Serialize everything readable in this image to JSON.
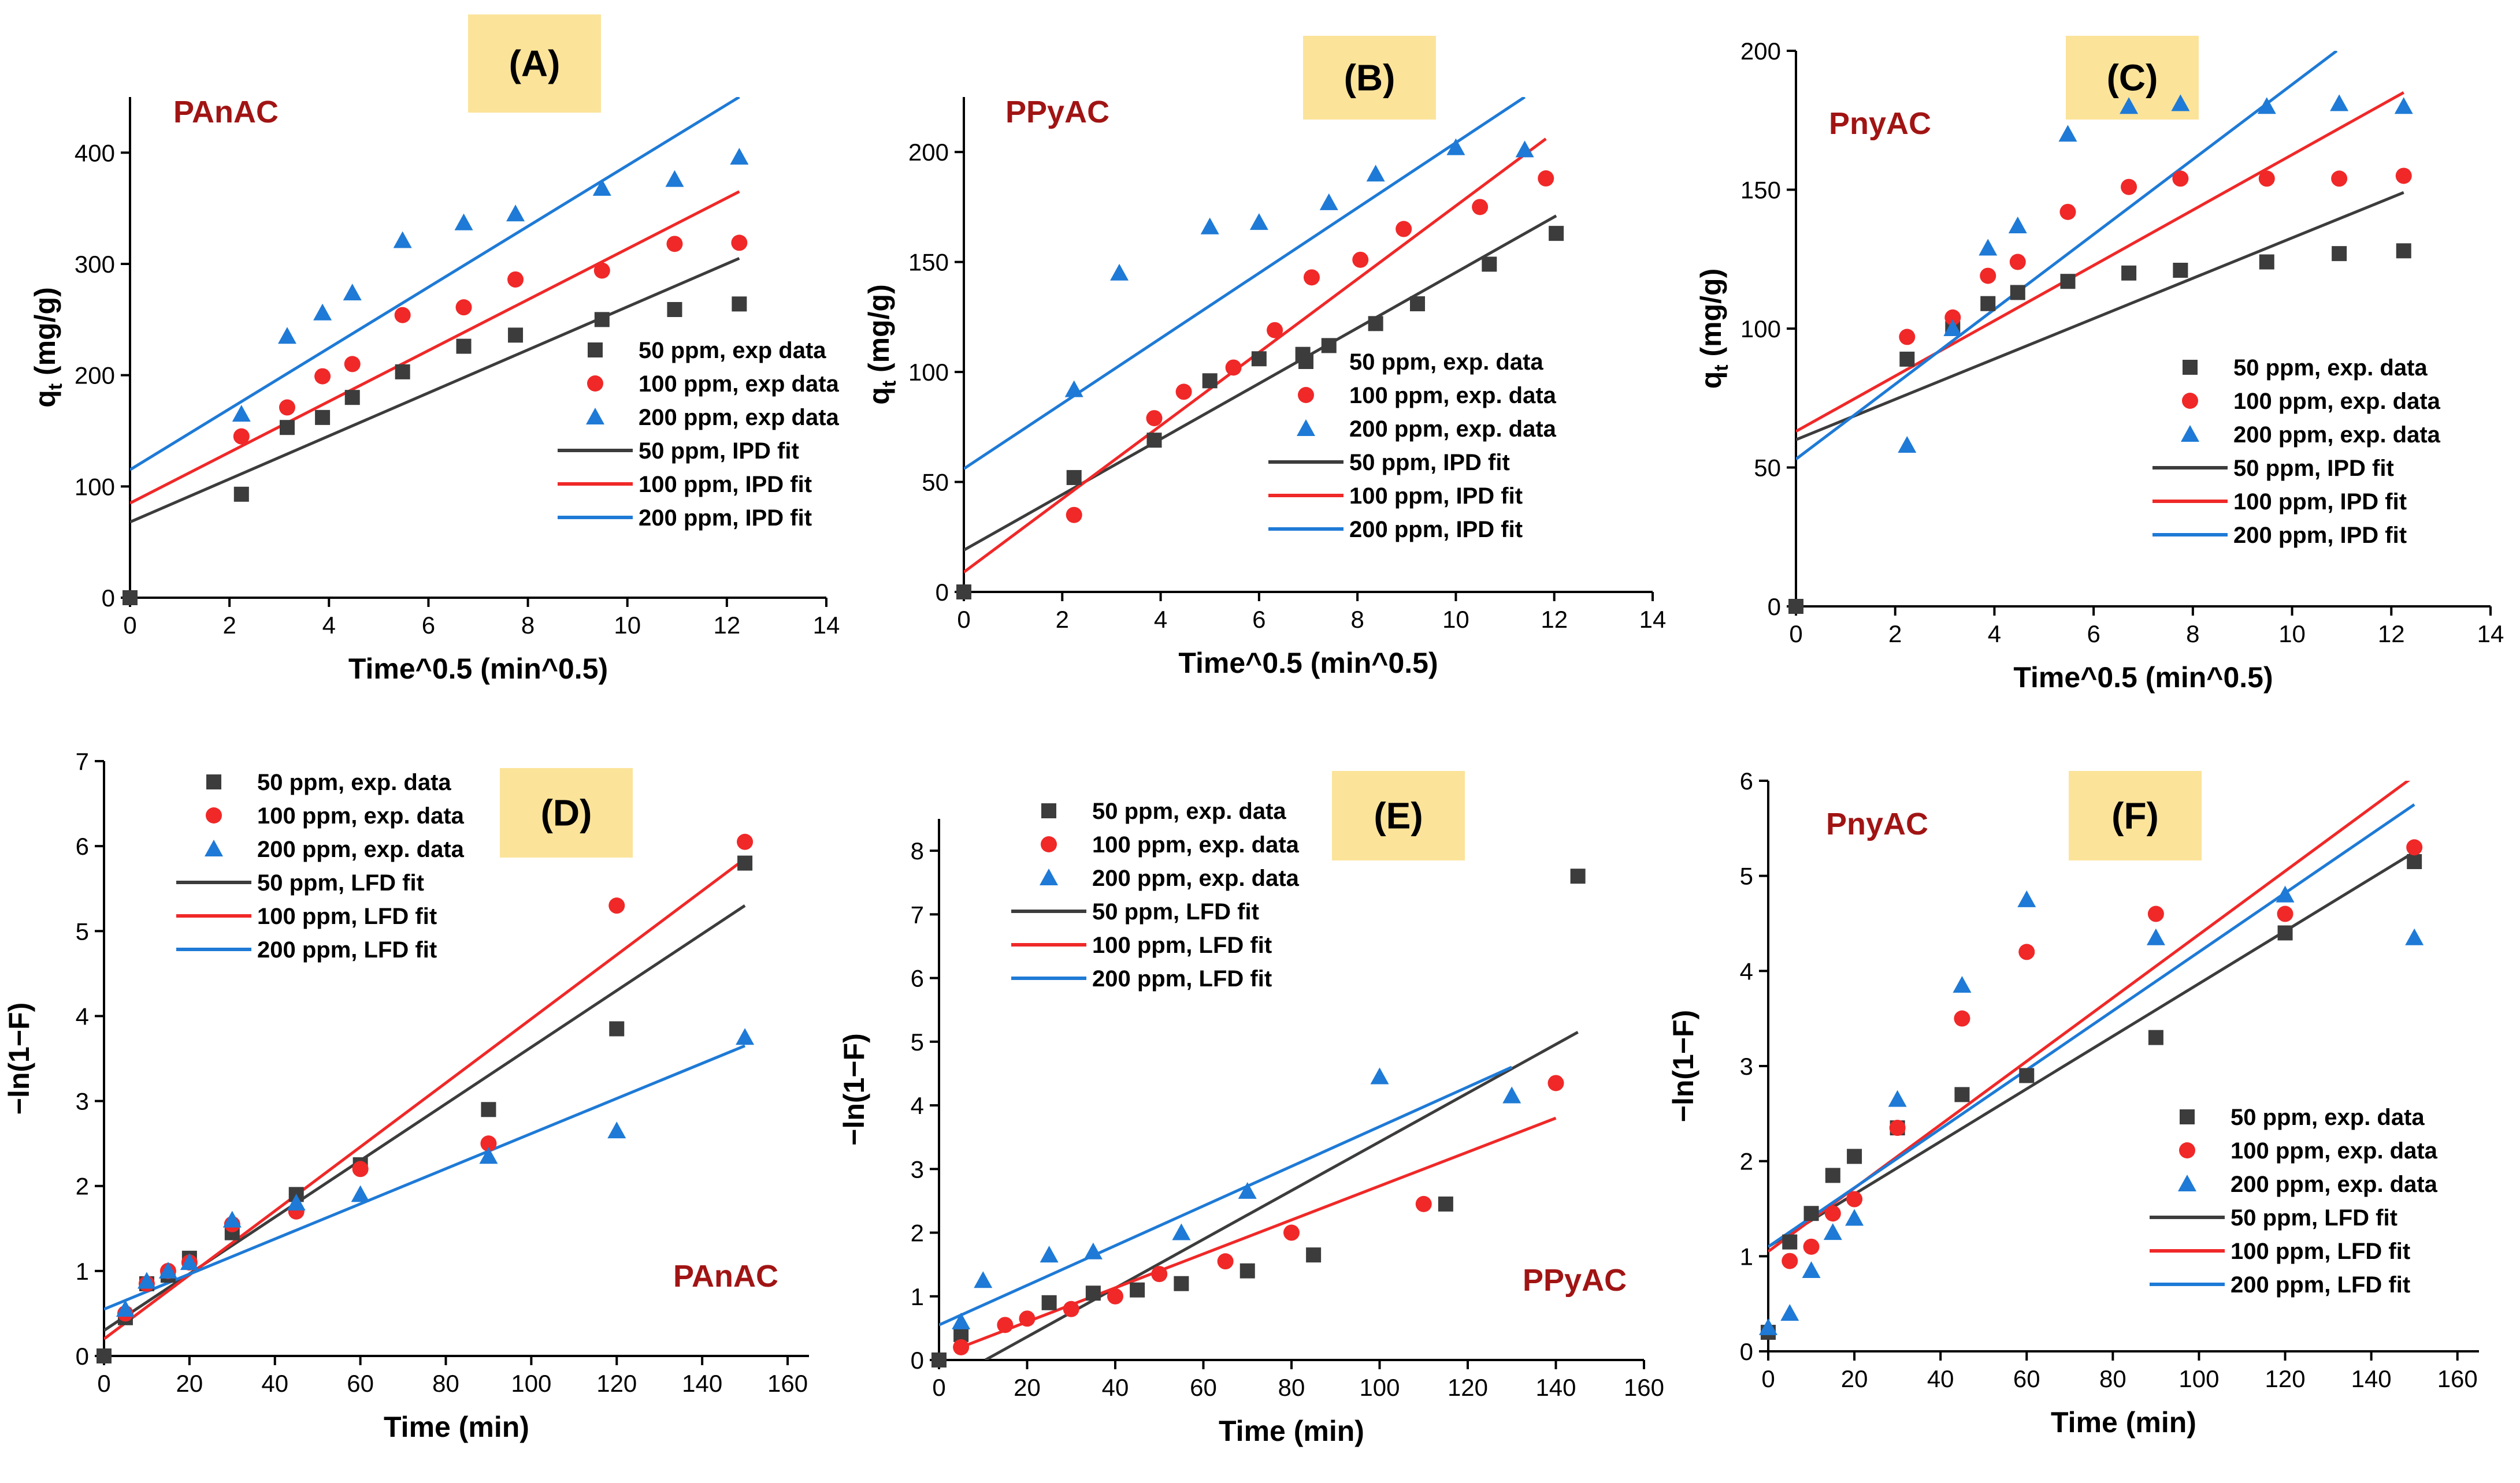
{
  "figure": {
    "colors": {
      "s50": "#3c3c3c",
      "s100": "#f02828",
      "s200": "#1e7ad6",
      "label_box": "#fbe39a",
      "annotation": "#a11414",
      "axis": "#000000"
    }
  },
  "chart_data": [
    {
      "id": "A",
      "type": "scatter",
      "panel_label": "(A)",
      "annotation": "PAnAC",
      "xlabel": "Time^0.5 (min^0.5)",
      "ylabel": "q_t (mg/g)",
      "xlim": [
        0,
        14
      ],
      "ylim": [
        0,
        450
      ],
      "xticks": [
        0,
        2,
        4,
        6,
        8,
        10,
        12,
        14
      ],
      "xtick_labels": [
        "0",
        "2",
        "4",
        "6",
        "8",
        "10",
        "12",
        "14"
      ],
      "yticks": [
        0,
        100,
        200,
        300,
        400
      ],
      "ytick_labels": [
        "0",
        "100",
        "200",
        "300",
        "400"
      ],
      "legend_position": "lower-right",
      "series": [
        {
          "name": "50 ppm, exp data",
          "kind": "points",
          "marker": "square",
          "color_key": "s50",
          "x": [
            0,
            2.24,
            3.16,
            3.87,
            4.47,
            5.48,
            6.71,
            7.75,
            9.49,
            10.95,
            12.25
          ],
          "y": [
            0,
            93,
            153,
            162,
            180,
            203,
            226,
            236,
            250,
            259,
            264
          ]
        },
        {
          "name": "100 ppm, exp data",
          "kind": "points",
          "marker": "circle",
          "color_key": "s100",
          "x": [
            2.24,
            3.16,
            3.87,
            4.47,
            5.48,
            6.71,
            7.75,
            9.49,
            10.95,
            12.25
          ],
          "y": [
            145,
            171,
            199,
            210,
            254,
            261,
            286,
            294,
            318,
            319
          ]
        },
        {
          "name": "200 ppm, exp data",
          "kind": "points",
          "marker": "triangle",
          "color_key": "s200",
          "x": [
            2.24,
            3.16,
            3.87,
            4.47,
            5.48,
            6.71,
            7.75,
            9.49,
            10.95,
            12.25
          ],
          "y": [
            165,
            235,
            256,
            274,
            321,
            337,
            345,
            368,
            376,
            396
          ]
        },
        {
          "name": "50 ppm, IPD fit",
          "kind": "line",
          "color_key": "s50",
          "x": [
            0,
            12.25
          ],
          "y": [
            68,
            305
          ]
        },
        {
          "name": "100 ppm, IPD fit",
          "kind": "line",
          "color_key": "s100",
          "x": [
            0,
            12.25
          ],
          "y": [
            85,
            365
          ]
        },
        {
          "name": "200 ppm, IPD fit",
          "kind": "line",
          "color_key": "s200",
          "x": [
            0,
            12.25
          ],
          "y": [
            115,
            450
          ]
        }
      ]
    },
    {
      "id": "B",
      "type": "scatter",
      "panel_label": "(B)",
      "annotation": "PPyAC",
      "xlabel": "Time^0.5 (min^0.5)",
      "ylabel": "q_t (mg/g)",
      "xlim": [
        0,
        14
      ],
      "ylim": [
        0,
        225
      ],
      "xticks": [
        0,
        2,
        4,
        6,
        8,
        10,
        12,
        14
      ],
      "xtick_labels": [
        "0",
        "2",
        "4",
        "6",
        "8",
        "10",
        "12",
        "14"
      ],
      "yticks": [
        0,
        50,
        100,
        150,
        200
      ],
      "ytick_labels": [
        "0",
        "50",
        "100",
        "150",
        "200"
      ],
      "legend_position": "lower-right",
      "series": [
        {
          "name": "50 ppm, exp. data",
          "kind": "points",
          "marker": "square",
          "color_key": "s50",
          "x": [
            0,
            2.24,
            3.87,
            5.0,
            6.0,
            6.89,
            7.42,
            8.37,
            9.22,
            10.68,
            12.04
          ],
          "y": [
            0,
            52,
            69,
            96,
            106,
            108,
            112,
            122,
            131,
            149,
            163
          ]
        },
        {
          "name": "100 ppm, exp. data",
          "kind": "points",
          "marker": "circle",
          "color_key": "s100",
          "x": [
            2.24,
            3.87,
            4.47,
            5.48,
            6.32,
            7.07,
            8.06,
            8.94,
            10.49,
            11.83
          ],
          "y": [
            35,
            79,
            91,
            102,
            119,
            143,
            151,
            165,
            175,
            188
          ]
        },
        {
          "name": "200 ppm, exp. data",
          "kind": "points",
          "marker": "triangle",
          "color_key": "s200",
          "x": [
            2.24,
            3.16,
            5.0,
            6.0,
            7.42,
            8.37,
            10.0,
            11.4
          ],
          "y": [
            92,
            145,
            166,
            168,
            177,
            190,
            202,
            201
          ]
        },
        {
          "name": "50 ppm, IPD fit",
          "kind": "line",
          "color_key": "s50",
          "x": [
            0,
            12.04
          ],
          "y": [
            19,
            171
          ]
        },
        {
          "name": "100 ppm, IPD fit",
          "kind": "line",
          "color_key": "s100",
          "x": [
            0,
            11.83
          ],
          "y": [
            9,
            206
          ]
        },
        {
          "name": "200 ppm, IPD fit",
          "kind": "line",
          "color_key": "s200",
          "x": [
            0,
            11.4
          ],
          "y": [
            56,
            225
          ]
        }
      ]
    },
    {
      "id": "C",
      "type": "scatter",
      "panel_label": "(C)",
      "annotation": "PnyAC",
      "xlabel": "Time^0.5 (min^0.5)",
      "ylabel": "q_t (mg/g)",
      "xlim": [
        0,
        14
      ],
      "ylim": [
        0,
        200
      ],
      "xticks": [
        0,
        2,
        4,
        6,
        8,
        10,
        12,
        14
      ],
      "xtick_labels": [
        "0",
        "2",
        "4",
        "6",
        "8",
        "10",
        "12",
        "14"
      ],
      "yticks": [
        0,
        50,
        100,
        150,
        200
      ],
      "ytick_labels": [
        "0",
        "50",
        "100",
        "150",
        "200"
      ],
      "legend_position": "lower-right",
      "series": [
        {
          "name": "50 ppm, exp. data",
          "kind": "points",
          "marker": "square",
          "color_key": "s50",
          "x": [
            0,
            2.24,
            3.16,
            3.87,
            4.47,
            5.48,
            6.71,
            7.75,
            9.49,
            10.95,
            12.25
          ],
          "y": [
            0,
            89,
            100,
            109,
            113,
            117,
            120,
            121,
            124,
            127,
            128
          ]
        },
        {
          "name": "100 ppm, exp. data",
          "kind": "points",
          "marker": "circle",
          "color_key": "s100",
          "x": [
            2.24,
            3.16,
            3.87,
            4.47,
            5.48,
            6.71,
            7.75,
            9.49,
            10.95,
            12.25
          ],
          "y": [
            97,
            104,
            119,
            124,
            142,
            151,
            154,
            154,
            154,
            155
          ]
        },
        {
          "name": "200 ppm, exp. data",
          "kind": "points",
          "marker": "triangle",
          "color_key": "s200",
          "x": [
            2.24,
            3.16,
            3.87,
            4.47,
            5.48,
            6.71,
            7.75,
            9.49,
            10.95,
            12.25
          ],
          "y": [
            58,
            100,
            129,
            137,
            170,
            180,
            181,
            180,
            181,
            180
          ]
        },
        {
          "name": "50 ppm, IPD fit",
          "kind": "line",
          "color_key": "s50",
          "x": [
            0,
            12.25
          ],
          "y": [
            60,
            149
          ]
        },
        {
          "name": "100 ppm, IPD fit",
          "kind": "line",
          "color_key": "s100",
          "x": [
            0,
            12.25
          ],
          "y": [
            63,
            185
          ]
        },
        {
          "name": "200 ppm, IPD fit",
          "kind": "line",
          "color_key": "s200",
          "x": [
            0,
            10.9
          ],
          "y": [
            53,
            200
          ]
        }
      ]
    },
    {
      "id": "D",
      "type": "scatter",
      "panel_label": "(D)",
      "annotation": "PAnAC",
      "xlabel": "Time (min)",
      "ylabel": "−ln(1−F)",
      "xlim": [
        0,
        165
      ],
      "ylim": [
        0,
        7
      ],
      "xticks": [
        0,
        20,
        40,
        60,
        80,
        100,
        120,
        140,
        160
      ],
      "xtick_labels": [
        "0",
        "20",
        "40",
        "60",
        "80",
        "100",
        "120",
        "140",
        "160"
      ],
      "yticks": [
        0,
        1,
        2,
        3,
        4,
        5,
        6,
        7
      ],
      "ytick_labels": [
        "0",
        "1",
        "2",
        "3",
        "4",
        "5",
        "6",
        "7"
      ],
      "legend_position": "top-left",
      "series": [
        {
          "name": "50 ppm, exp. data",
          "kind": "points",
          "marker": "square",
          "color_key": "s50",
          "x": [
            0,
            5,
            10,
            15,
            20,
            30,
            45,
            60,
            90,
            120,
            150
          ],
          "y": [
            0,
            0.45,
            0.85,
            0.95,
            1.15,
            1.45,
            1.9,
            2.25,
            2.9,
            3.85,
            5.8
          ]
        },
        {
          "name": "100 ppm, exp. data",
          "kind": "points",
          "marker": "circle",
          "color_key": "s100",
          "x": [
            5,
            10,
            15,
            20,
            30,
            45,
            60,
            90,
            120,
            150
          ],
          "y": [
            0.5,
            0.85,
            1.0,
            1.1,
            1.55,
            1.7,
            2.2,
            2.5,
            5.3,
            6.05
          ]
        },
        {
          "name": "200 ppm, exp. data",
          "kind": "points",
          "marker": "triangle",
          "color_key": "s200",
          "x": [
            5,
            10,
            15,
            20,
            30,
            45,
            60,
            90,
            120,
            150
          ],
          "y": [
            0.55,
            0.88,
            1.0,
            1.1,
            1.6,
            1.8,
            1.9,
            2.35,
            2.65,
            3.75
          ]
        },
        {
          "name": "50 ppm, LFD fit",
          "kind": "line",
          "color_key": "s50",
          "x": [
            0,
            150
          ],
          "y": [
            0.3,
            5.3
          ]
        },
        {
          "name": "100 ppm, LFD fit",
          "kind": "line",
          "color_key": "s100",
          "x": [
            0,
            150
          ],
          "y": [
            0.2,
            5.85
          ]
        },
        {
          "name": "200 ppm, LFD fit",
          "kind": "line",
          "color_key": "s200",
          "x": [
            0,
            150
          ],
          "y": [
            0.55,
            3.65
          ]
        }
      ]
    },
    {
      "id": "E",
      "type": "scatter",
      "panel_label": "(E)",
      "annotation": "PPyAC",
      "xlabel": "Time (min)",
      "ylabel": "−ln(1−F)",
      "xlim": [
        0,
        160
      ],
      "ylim": [
        0,
        8.5
      ],
      "xticks": [
        0,
        20,
        40,
        60,
        80,
        100,
        120,
        140,
        160
      ],
      "xtick_labels": [
        "0",
        "20",
        "40",
        "60",
        "80",
        "100",
        "120",
        "140",
        "160"
      ],
      "yticks": [
        0,
        1,
        2,
        3,
        4,
        5,
        6,
        7,
        8
      ],
      "ytick_labels": [
        "0",
        "1",
        "2",
        "3",
        "4",
        "5",
        "6",
        "7",
        "8"
      ],
      "legend_position": "top-left",
      "series": [
        {
          "name": "50 ppm, exp. data",
          "kind": "points",
          "marker": "square",
          "color_key": "s50",
          "x": [
            0,
            5,
            25,
            35,
            45,
            55,
            70,
            85,
            115,
            145
          ],
          "y": [
            0,
            0.4,
            0.9,
            1.05,
            1.1,
            1.2,
            1.4,
            1.65,
            2.45,
            7.6
          ]
        },
        {
          "name": "100 ppm, exp. data",
          "kind": "points",
          "marker": "circle",
          "color_key": "s100",
          "x": [
            5,
            15,
            20,
            30,
            40,
            50,
            65,
            80,
            110,
            140
          ],
          "y": [
            0.2,
            0.55,
            0.65,
            0.8,
            1.0,
            1.35,
            1.55,
            2.0,
            2.45,
            4.35
          ]
        },
        {
          "name": "200 ppm, exp. data",
          "kind": "points",
          "marker": "triangle",
          "color_key": "s200",
          "x": [
            5,
            10,
            25,
            35,
            55,
            70,
            100,
            130
          ],
          "y": [
            0.6,
            1.25,
            1.65,
            1.7,
            2.0,
            2.65,
            4.45,
            4.15
          ]
        },
        {
          "name": "50 ppm, LFD fit",
          "kind": "line",
          "color_key": "s50",
          "x": [
            10.5,
            145
          ],
          "y": [
            0,
            5.15
          ]
        },
        {
          "name": "100 ppm, LFD fit",
          "kind": "line",
          "color_key": "s100",
          "x": [
            5,
            140
          ],
          "y": [
            0.2,
            3.8
          ]
        },
        {
          "name": "200 ppm, LFD fit",
          "kind": "line",
          "color_key": "s200",
          "x": [
            0,
            130
          ],
          "y": [
            0.55,
            4.6
          ]
        }
      ]
    },
    {
      "id": "F",
      "type": "scatter",
      "panel_label": "(F)",
      "annotation": "PnyAC",
      "xlabel": "Time (min)",
      "ylabel": "−ln(1−F)",
      "xlim": [
        0,
        165
      ],
      "ylim": [
        0,
        6
      ],
      "xticks": [
        0,
        20,
        40,
        60,
        80,
        100,
        120,
        140,
        160
      ],
      "xtick_labels": [
        "0",
        "20",
        "40",
        "60",
        "80",
        "100",
        "120",
        "140",
        "160"
      ],
      "yticks": [
        0,
        1,
        2,
        3,
        4,
        5,
        6
      ],
      "ytick_labels": [
        "0",
        "1",
        "2",
        "3",
        "4",
        "5",
        "6"
      ],
      "legend_position": "lower-right",
      "series": [
        {
          "name": "50 ppm, exp. data",
          "kind": "points",
          "marker": "square",
          "color_key": "s50",
          "x": [
            0,
            5,
            10,
            15,
            20,
            30,
            45,
            60,
            90,
            120,
            150
          ],
          "y": [
            0.2,
            1.15,
            1.45,
            1.85,
            2.05,
            2.35,
            2.7,
            2.9,
            3.3,
            4.4,
            5.15
          ]
        },
        {
          "name": "100 ppm, exp. data",
          "kind": "points",
          "marker": "circle",
          "color_key": "s100",
          "x": [
            5,
            10,
            15,
            20,
            30,
            45,
            60,
            90,
            120,
            150
          ],
          "y": [
            0.95,
            1.1,
            1.45,
            1.6,
            2.35,
            3.5,
            4.2,
            4.6,
            4.6,
            5.3
          ]
        },
        {
          "name": "200 ppm, exp. data",
          "kind": "points",
          "marker": "triangle",
          "color_key": "s200",
          "x": [
            0,
            5,
            10,
            15,
            20,
            30,
            45,
            60,
            90,
            120,
            150
          ],
          "y": [
            0.25,
            0.4,
            0.85,
            1.25,
            1.4,
            2.65,
            3.85,
            4.75,
            4.35,
            4.8,
            4.35
          ]
        },
        {
          "name": "50 ppm, LFD fit",
          "kind": "line",
          "color_key": "s50",
          "x": [
            0,
            150
          ],
          "y": [
            1.1,
            5.25
          ]
        },
        {
          "name": "100 ppm, LFD fit",
          "kind": "line",
          "color_key": "s100",
          "x": [
            0,
            150
          ],
          "y": [
            1.05,
            6.05
          ]
        },
        {
          "name": "200 ppm, LFD fit",
          "kind": "line",
          "color_key": "s200",
          "x": [
            0,
            150
          ],
          "y": [
            1.1,
            5.75
          ]
        }
      ]
    }
  ]
}
